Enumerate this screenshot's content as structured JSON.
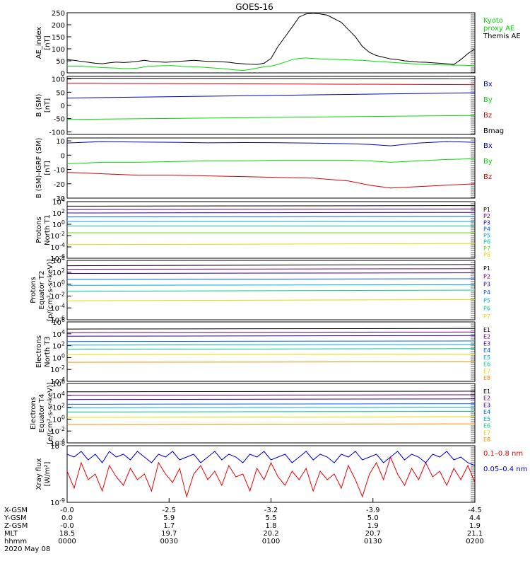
{
  "title": "GOES-16",
  "time_labels": [
    "0000",
    "0030",
    "0100",
    "0130",
    "0200"
  ],
  "footer_rows": [
    {
      "label": "X-GSM",
      "values": [
        "-0.0",
        "-2.5",
        "-3.2",
        "-3.9",
        "-4.5"
      ]
    },
    {
      "label": "Y-GSM",
      "values": [
        "0.0",
        "5.9",
        "5.5",
        "5.0",
        "4.4"
      ]
    },
    {
      "label": "Z-GSM",
      "values": [
        "-0.0",
        "1.7",
        "1.8",
        "1.9",
        "1.9"
      ]
    },
    {
      "label": "MLT",
      "values": [
        "18.5",
        "19.7",
        "20.2",
        "20.7",
        "21.1"
      ]
    },
    {
      "label": "hhmm",
      "values": [
        "0000",
        "0030",
        "0100",
        "0130",
        "0200"
      ]
    }
  ],
  "date": "2020 May 08",
  "chart_data": [
    {
      "type": "line",
      "id": "ae",
      "ylabel": "AE_index\n[nT]",
      "ylim": [
        0,
        250
      ],
      "yticks": [
        {
          "v": 0,
          "t": "0"
        },
        {
          "v": 50,
          "t": "50"
        },
        {
          "v": 100,
          "t": "100"
        },
        {
          "v": 150,
          "t": "150"
        },
        {
          "v": 200,
          "t": "200"
        },
        {
          "v": 250,
          "t": "250"
        }
      ],
      "x": [
        0,
        10,
        20,
        30,
        40,
        50,
        60,
        70,
        80,
        90,
        100,
        105,
        110,
        115,
        120,
        130,
        140,
        150,
        160,
        170,
        180,
        190,
        200,
        210,
        220,
        230,
        240,
        250,
        260,
        270,
        280,
        290,
        300,
        310,
        320,
        330,
        340,
        350,
        360,
        370,
        380,
        390,
        400,
        410,
        420,
        430,
        440,
        450,
        460,
        470,
        480,
        490,
        500,
        510,
        520,
        530,
        540,
        550,
        560,
        570,
        580
      ],
      "series": [
        {
          "name": "Kyoto\nproxy AE",
          "color": "#00dd00",
          "values": [
            28,
            28,
            28,
            26,
            24,
            22,
            21,
            20,
            18,
            18,
            20,
            22,
            25,
            27,
            28,
            29,
            30,
            30,
            28,
            26,
            25,
            24,
            22,
            20,
            18,
            15,
            12,
            10,
            14,
            20,
            25,
            28,
            35,
            45,
            55,
            60,
            62,
            60,
            58,
            57,
            56,
            55,
            54,
            53,
            52,
            50,
            48,
            46,
            44,
            42,
            40,
            38,
            36,
            35,
            34,
            33,
            33,
            32,
            32,
            31,
            30
          ]
        },
        {
          "name": "Themis AE",
          "color": "#000000",
          "values": [
            55,
            52,
            48,
            44,
            40,
            38,
            42,
            45,
            43,
            45,
            48,
            50,
            52,
            50,
            48,
            46,
            44,
            46,
            48,
            50,
            52,
            50,
            48,
            48,
            46,
            44,
            40,
            38,
            36,
            35,
            40,
            60,
            110,
            150,
            190,
            232,
            245,
            248,
            245,
            240,
            225,
            210,
            180,
            150,
            110,
            85,
            72,
            65,
            58,
            55,
            50,
            48,
            45,
            44,
            42,
            40,
            38,
            35,
            55,
            80,
            100
          ]
        }
      ]
    },
    {
      "type": "line",
      "id": "bsm",
      "ylabel": "B (SM)\n[nT]",
      "ylim": [
        -110,
        110
      ],
      "yticks": [
        {
          "v": -100,
          "t": "-100"
        },
        {
          "v": -50,
          "t": "-50"
        },
        {
          "v": 0,
          "t": "0"
        },
        {
          "v": 50,
          "t": "50"
        },
        {
          "v": 100,
          "t": "100"
        }
      ],
      "x": [
        0,
        580
      ],
      "series": [
        {
          "name": "Bx",
          "color": "#0000cc",
          "values": [
            28,
            48
          ]
        },
        {
          "name": "By",
          "color": "#00dd00",
          "values": [
            -53,
            -38
          ]
        },
        {
          "name": "Bz",
          "color": "#dd0000",
          "values": [
            84,
            79
          ]
        },
        {
          "name": "Bmag",
          "color": "#000000",
          "values": [
            103,
            101
          ]
        }
      ]
    },
    {
      "type": "line",
      "id": "bigrf",
      "ylabel": "B (SM)-IGRF (SM)\n[nT]",
      "ylim": [
        -30,
        12
      ],
      "yticks": [
        {
          "v": -30,
          "t": "-30"
        },
        {
          "v": -20,
          "t": "-20"
        },
        {
          "v": -10,
          "t": "-10"
        },
        {
          "v": 0,
          "t": "0"
        },
        {
          "v": 10,
          "t": "10"
        }
      ],
      "x": [
        0,
        50,
        100,
        150,
        200,
        250,
        300,
        350,
        400,
        430,
        460,
        500,
        540,
        580
      ],
      "series": [
        {
          "name": "Bx",
          "color": "#0000cc",
          "values": [
            8.5,
            9.5,
            9.2,
            9.0,
            8.6,
            8.8,
            8.7,
            8.4,
            8.0,
            7.5,
            6.5,
            8.5,
            9.5,
            9.0
          ]
        },
        {
          "name": "By",
          "color": "#00dd00",
          "values": [
            -6,
            -5,
            -5,
            -4.5,
            -4,
            -4,
            -3.5,
            -3.5,
            -3.5,
            -4,
            -5,
            -4,
            -3,
            -2.5
          ]
        },
        {
          "name": "Bz",
          "color": "#dd0000",
          "values": [
            -12,
            -13,
            -14,
            -14,
            -14.5,
            -15,
            -15.5,
            -16,
            -18,
            -21,
            -23,
            -22,
            -21,
            -20
          ]
        }
      ]
    },
    {
      "type": "line",
      "id": "pn",
      "log": true,
      "ylabel": "Protons\nNorth T1",
      "ylim": [
        -6,
        4
      ],
      "yticks": [
        {
          "v": 4,
          "t": "10^4"
        },
        {
          "v": 2,
          "t": "10^2"
        },
        {
          "v": 0,
          "t": "10^0"
        },
        {
          "v": -2,
          "t": "10^-2"
        },
        {
          "v": -4,
          "t": "10^-4"
        },
        {
          "v": -6,
          "t": "10^-6"
        }
      ],
      "x": [
        0,
        580
      ],
      "series": [
        {
          "name": "P1",
          "color": "#000000",
          "values": [
            3.2,
            3.3
          ]
        },
        {
          "name": "P2",
          "color": "#6a0077",
          "values": [
            2.6,
            2.7
          ]
        },
        {
          "name": "P3",
          "color": "#2a00aa",
          "values": [
            2.0,
            2.1
          ]
        },
        {
          "name": "P4",
          "color": "#0060ff",
          "values": [
            1.3,
            1.4
          ]
        },
        {
          "name": "P5",
          "color": "#00aadd",
          "values": [
            0.5,
            0.5
          ]
        },
        {
          "name": "P6",
          "color": "#00cc88",
          "values": [
            -0.3,
            -0.3
          ]
        },
        {
          "name": "P7",
          "color": "#66dd00",
          "values": [
            -1.5,
            -1.5
          ]
        },
        {
          "name": "P8",
          "color": "#dddd00",
          "values": [
            -3.6,
            -3.4
          ]
        }
      ]
    },
    {
      "type": "line",
      "id": "pe",
      "log": true,
      "ylabel": "Protons\nEquator T2\n[p/(cm²-s-sr-keV)]",
      "ylim": [
        -6,
        4
      ],
      "yticks": [
        {
          "v": 4,
          "t": "10^4"
        },
        {
          "v": 2,
          "t": "10^2"
        },
        {
          "v": 0,
          "t": "10^0"
        },
        {
          "v": -2,
          "t": "10^-2"
        },
        {
          "v": -4,
          "t": "10^-4"
        },
        {
          "v": -6,
          "t": "10^-6"
        }
      ],
      "x": [
        0,
        580
      ],
      "series": [
        {
          "name": "P1",
          "color": "#000000",
          "values": [
            3.1,
            3.3
          ]
        },
        {
          "name": "P2",
          "color": "#6a0077",
          "values": [
            2.5,
            2.6
          ]
        },
        {
          "name": "P3",
          "color": "#2a00aa",
          "values": [
            1.8,
            1.9
          ]
        },
        {
          "name": "P4",
          "color": "#0060ff",
          "values": [
            0.8,
            0.9
          ]
        },
        {
          "name": "P5",
          "color": "#00aadd",
          "values": [
            -0.2,
            -0.1
          ]
        },
        {
          "name": "P6",
          "color": "#00cc88",
          "values": [
            -1.2,
            -1.0
          ]
        },
        {
          "name": "P7",
          "color": "#dddd00",
          "values": [
            -2.8,
            -2.6
          ]
        }
      ]
    },
    {
      "type": "line",
      "id": "en",
      "log": true,
      "ylabel": "Electrons\nNorth T3",
      "ylim": [
        -4,
        6
      ],
      "yticks": [
        {
          "v": 6,
          "t": "10^6"
        },
        {
          "v": 4,
          "t": "10^4"
        },
        {
          "v": 2,
          "t": "10^2"
        },
        {
          "v": 0,
          "t": "10^0"
        },
        {
          "v": -2,
          "t": "10^-2"
        },
        {
          "v": -4,
          "t": "10^-4"
        }
      ],
      "x": [
        0,
        580
      ],
      "series": [
        {
          "name": "E1",
          "color": "#000000",
          "values": [
            4.8,
            4.9
          ]
        },
        {
          "name": "E2",
          "color": "#6a0077",
          "values": [
            4.2,
            4.3
          ]
        },
        {
          "name": "E3",
          "color": "#2a00aa",
          "values": [
            3.6,
            3.7
          ]
        },
        {
          "name": "E4",
          "color": "#0060ff",
          "values": [
            2.7,
            2.8
          ]
        },
        {
          "name": "E5",
          "color": "#00aadd",
          "values": [
            2.1,
            2.2
          ]
        },
        {
          "name": "E6",
          "color": "#00cc88",
          "values": [
            1.4,
            1.5
          ]
        },
        {
          "name": "E7",
          "color": "#dddd00",
          "values": [
            0.5,
            0.6
          ]
        },
        {
          "name": "E8",
          "color": "#ff8800",
          "values": [
            -0.8,
            -0.7
          ]
        }
      ]
    },
    {
      "type": "line",
      "id": "ee",
      "log": true,
      "ylabel": "Electrons\nEquator T4\n[e/(cm²-s-sr-keV)]",
      "ylim": [
        -4,
        6
      ],
      "yticks": [
        {
          "v": 6,
          "t": "10^6"
        },
        {
          "v": 4,
          "t": "10^4"
        },
        {
          "v": 2,
          "t": "10^2"
        },
        {
          "v": 0,
          "t": "10^0"
        },
        {
          "v": -2,
          "t": "10^-2"
        },
        {
          "v": -4,
          "t": "10^-4"
        }
      ],
      "x": [
        0,
        580
      ],
      "series": [
        {
          "name": "E1",
          "color": "#000000",
          "values": [
            4.6,
            4.7
          ]
        },
        {
          "name": "E2",
          "color": "#6a0077",
          "values": [
            4.0,
            4.1
          ]
        },
        {
          "name": "E3",
          "color": "#2a00aa",
          "values": [
            3.3,
            3.4
          ]
        },
        {
          "name": "E4",
          "color": "#0060ff",
          "values": [
            2.5,
            2.6
          ]
        },
        {
          "name": "E5",
          "color": "#00aadd",
          "values": [
            1.9,
            2.0
          ]
        },
        {
          "name": "E6",
          "color": "#00cc88",
          "values": [
            1.2,
            1.3
          ]
        },
        {
          "name": "E7",
          "color": "#dddd00",
          "values": [
            0.3,
            0.4
          ]
        },
        {
          "name": "E8",
          "color": "#ff8800",
          "values": [
            -0.9,
            -0.8
          ]
        }
      ]
    },
    {
      "type": "line",
      "id": "xray",
      "log": true,
      "ylabel": "Xray flux\n[W/m²]",
      "ylim": [
        -9,
        -8
      ],
      "yticks": [
        {
          "v": -8,
          "t": "10^-8"
        },
        {
          "v": -9,
          "t": "10^-9"
        }
      ],
      "x": [
        0,
        10,
        20,
        30,
        40,
        50,
        60,
        70,
        80,
        90,
        100,
        110,
        120,
        130,
        140,
        150,
        160,
        170,
        180,
        190,
        200,
        210,
        220,
        230,
        240,
        250,
        260,
        270,
        280,
        290,
        300,
        310,
        320,
        330,
        340,
        350,
        360,
        370,
        380,
        390,
        400,
        410,
        420,
        430,
        440,
        450,
        460,
        470,
        480,
        490,
        500,
        510,
        520,
        530,
        540,
        550,
        560,
        570,
        580
      ],
      "series": [
        {
          "name": "0.1–0.8 nm",
          "color": "#ee0000",
          "values": [
            -8.45,
            -8.75,
            -8.3,
            -8.6,
            -8.5,
            -8.8,
            -8.35,
            -8.55,
            -8.7,
            -8.4,
            -8.6,
            -8.5,
            -8.8,
            -8.3,
            -8.5,
            -8.65,
            -8.4,
            -8.9,
            -8.5,
            -8.35,
            -8.6,
            -8.45,
            -8.7,
            -8.35,
            -8.55,
            -8.5,
            -8.8,
            -8.4,
            -8.6,
            -8.3,
            -8.55,
            -8.7,
            -8.45,
            -8.6,
            -8.4,
            -8.8,
            -8.45,
            -8.6,
            -8.5,
            -8.75,
            -8.35,
            -8.6,
            -8.9,
            -8.5,
            -8.3,
            -8.6,
            -8.2,
            -8.5,
            -8.7,
            -8.4,
            -8.6,
            -8.3,
            -8.55,
            -8.45,
            -8.7,
            -8.4,
            -8.6,
            -8.35,
            -8.65
          ]
        },
        {
          "name": "0.05–0.4 nm",
          "color": "#0000dd",
          "values": [
            -8.15,
            -8.2,
            -8.1,
            -8.25,
            -8.15,
            -8.3,
            -8.1,
            -8.2,
            -8.15,
            -8.25,
            -8.1,
            -8.2,
            -8.3,
            -8.15,
            -8.2,
            -8.1,
            -8.25,
            -8.2,
            -8.15,
            -8.3,
            -8.2,
            -8.1,
            -8.25,
            -8.15,
            -8.2,
            -8.3,
            -8.15,
            -8.2,
            -8.1,
            -8.25,
            -8.2,
            -8.15,
            -8.3,
            -8.2,
            -8.1,
            -8.25,
            -8.15,
            -8.2,
            -8.3,
            -8.15,
            -8.2,
            -8.1,
            -8.25,
            -8.2,
            -8.15,
            -8.3,
            -8.2,
            -8.1,
            -8.25,
            -8.15,
            -8.2,
            -8.3,
            -8.15,
            -8.2,
            -8.1,
            -8.25,
            -8.2,
            -8.3,
            -8.35
          ]
        }
      ]
    }
  ]
}
